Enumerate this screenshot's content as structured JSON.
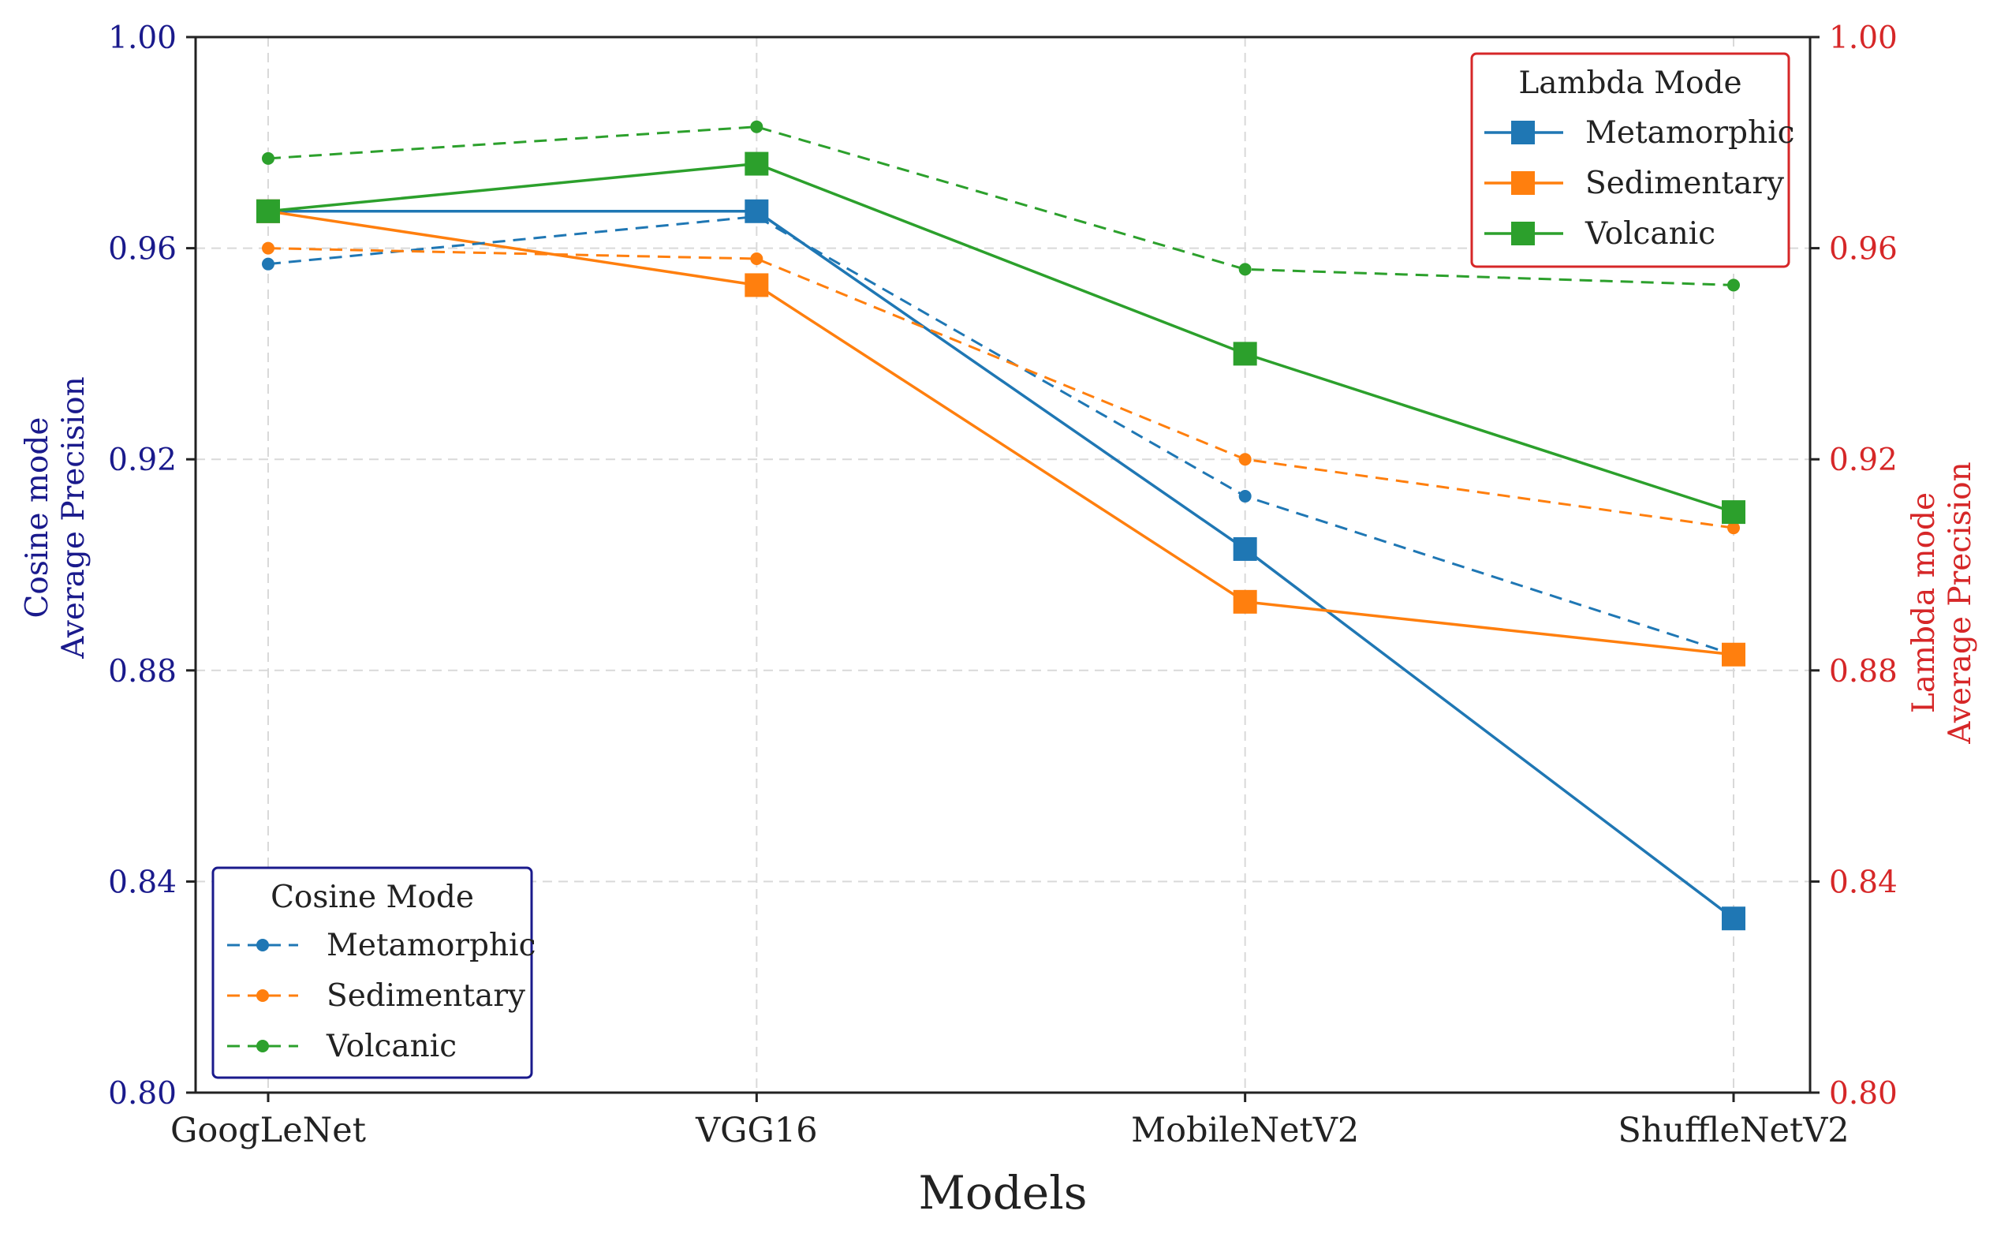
{
  "chart_data": {
    "type": "line",
    "xlabel": "Models",
    "ylabel_left": [
      "Cosine mode",
      "Average Precision"
    ],
    "ylabel_right": [
      "Lambda mode",
      "Average Precision"
    ],
    "categories": [
      "GoogLeNet",
      "VGG16",
      "MobileNetV2",
      "ShuffleNetV2"
    ],
    "ylim": [
      0.8,
      1.0
    ],
    "yticks": [
      "0.80",
      "0.84",
      "0.88",
      "0.92",
      "0.96",
      "1.00"
    ],
    "yticks_values": [
      0.8,
      0.84,
      0.88,
      0.92,
      0.96,
      1.0
    ],
    "grid": true,
    "colors": {
      "Metamorphic": "#1f77b4",
      "Sedimentary": "#ff7f0e",
      "Volcanic": "#2ca02c",
      "left_axis": "#1a1a8c",
      "right_axis": "#d62728"
    },
    "lambda_series": [
      {
        "name": "Metamorphic",
        "values": [
          0.967,
          0.967,
          0.903,
          0.833
        ]
      },
      {
        "name": "Sedimentary",
        "values": [
          0.967,
          0.953,
          0.893,
          0.883
        ]
      },
      {
        "name": "Volcanic",
        "values": [
          0.967,
          0.976,
          0.94,
          0.91
        ]
      }
    ],
    "cosine_series": [
      {
        "name": "Metamorphic",
        "values": [
          0.957,
          0.966,
          0.913,
          0.883
        ]
      },
      {
        "name": "Sedimentary",
        "values": [
          0.96,
          0.958,
          0.92,
          0.907
        ]
      },
      {
        "name": "Volcanic",
        "values": [
          0.977,
          0.983,
          0.956,
          0.953
        ]
      }
    ],
    "legend_lambda": {
      "title": "Lambda Mode",
      "placement": "top-right",
      "entries": [
        "Metamorphic",
        "Sedimentary",
        "Volcanic"
      ]
    },
    "legend_cosine": {
      "title": "Cosine Mode",
      "placement": "bottom-left",
      "entries": [
        "Metamorphic",
        "Sedimentary",
        "Volcanic"
      ]
    }
  }
}
